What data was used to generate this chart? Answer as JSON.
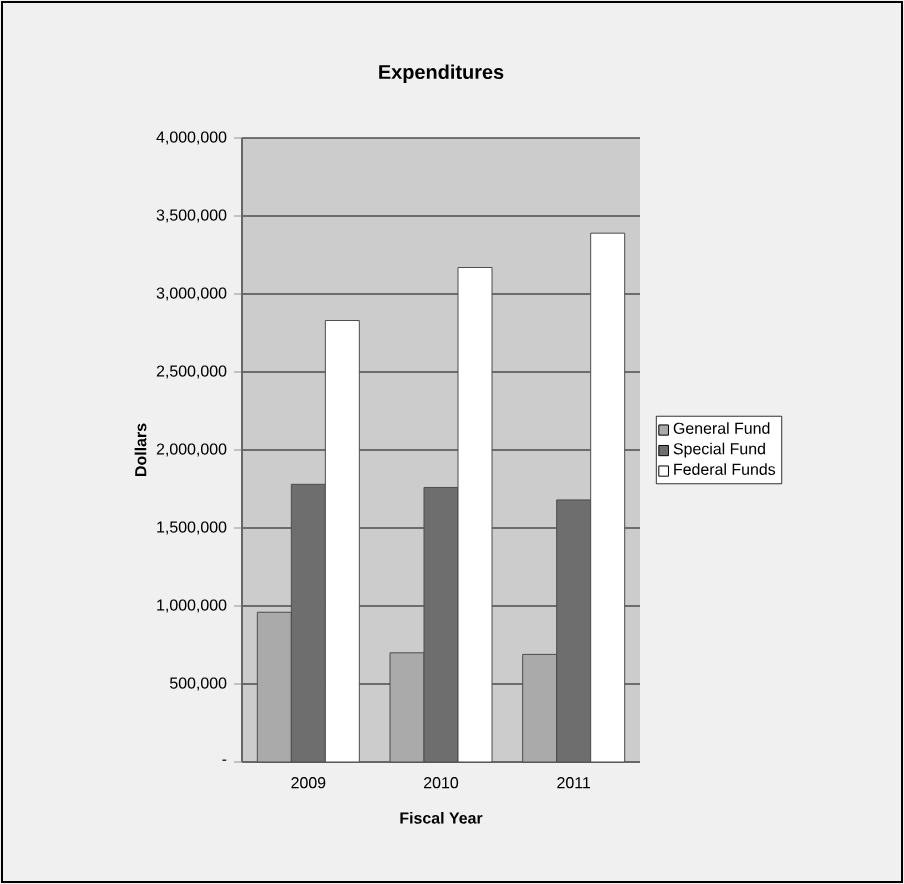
{
  "chart_data": {
    "type": "bar",
    "title": "Expenditures",
    "xlabel": "Fiscal Year",
    "ylabel": "Dollars",
    "categories": [
      "2009",
      "2010",
      "2011"
    ],
    "series": [
      {
        "name": "General Fund",
        "color": "#aaaaaa",
        "values": [
          960000,
          700000,
          690000
        ]
      },
      {
        "name": "Special Fund",
        "color": "#6e6e6e",
        "values": [
          1780000,
          1760000,
          1680000
        ]
      },
      {
        "name": "Federal Funds",
        "color": "#ffffff",
        "values": [
          2830000,
          3170000,
          3390000
        ]
      }
    ],
    "ylim": [
      0,
      4000000
    ],
    "yticks": [
      {
        "value": 0,
        "label": "-"
      },
      {
        "value": 500000,
        "label": "500,000"
      },
      {
        "value": 1000000,
        "label": "1,000,000"
      },
      {
        "value": 1500000,
        "label": "1,500,000"
      },
      {
        "value": 2000000,
        "label": "2,000,000"
      },
      {
        "value": 2500000,
        "label": "2,500,000"
      },
      {
        "value": 3000000,
        "label": "3,000,000"
      },
      {
        "value": 3500000,
        "label": "3,500,000"
      },
      {
        "value": 4000000,
        "label": "4,000,000"
      }
    ],
    "grid": "y",
    "legend": "right"
  }
}
